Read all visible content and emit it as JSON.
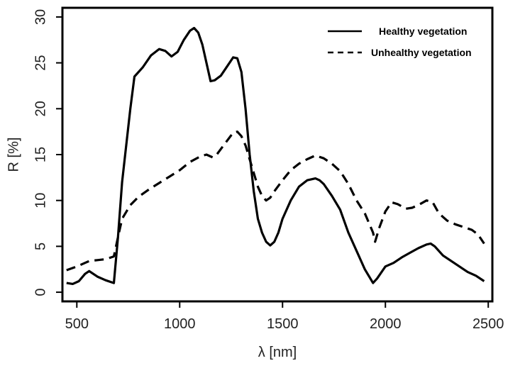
{
  "chart_data": {
    "type": "line",
    "title": "",
    "xlabel": "λ [nm]",
    "ylabel": "R  [%]",
    "xlim": [
      430,
      2520
    ],
    "ylim": [
      -1,
      31
    ],
    "xticks": [
      500,
      1000,
      1500,
      2000,
      2500
    ],
    "yticks": [
      0,
      5,
      10,
      15,
      20,
      25,
      30
    ],
    "grid": false,
    "legend_position": "top-right",
    "series": [
      {
        "name": "Healthy vegetation",
        "style": "solid",
        "color": "#000000",
        "x": [
          450,
          480,
          510,
          540,
          560,
          600,
          640,
          680,
          700,
          720,
          760,
          780,
          820,
          860,
          900,
          930,
          960,
          990,
          1020,
          1050,
          1070,
          1090,
          1110,
          1130,
          1150,
          1170,
          1200,
          1230,
          1260,
          1280,
          1300,
          1320,
          1340,
          1360,
          1380,
          1400,
          1420,
          1440,
          1460,
          1480,
          1500,
          1540,
          1580,
          1620,
          1660,
          1680,
          1700,
          1740,
          1780,
          1820,
          1860,
          1900,
          1940,
          1960,
          2000,
          2040,
          2080,
          2120,
          2160,
          2200,
          2220,
          2240,
          2280,
          2320,
          2360,
          2400,
          2440,
          2480
        ],
        "y": [
          1.0,
          0.9,
          1.2,
          2.0,
          2.3,
          1.7,
          1.3,
          1.0,
          6.0,
          12.0,
          20.0,
          23.5,
          24.5,
          25.8,
          26.5,
          26.3,
          25.7,
          26.2,
          27.5,
          28.5,
          28.8,
          28.3,
          27.0,
          25.0,
          23.0,
          23.1,
          23.6,
          24.6,
          25.6,
          25.5,
          24.0,
          20.0,
          15.0,
          11.0,
          8.0,
          6.5,
          5.5,
          5.1,
          5.5,
          6.5,
          8.0,
          10.0,
          11.5,
          12.2,
          12.4,
          12.2,
          11.8,
          10.5,
          9.0,
          6.5,
          4.5,
          2.5,
          1.0,
          1.5,
          2.8,
          3.2,
          3.8,
          4.3,
          4.8,
          5.2,
          5.3,
          5.0,
          4.0,
          3.4,
          2.8,
          2.2,
          1.8,
          1.2
        ]
      },
      {
        "name": "Unhealthy vegetation",
        "style": "dashed",
        "color": "#000000",
        "x": [
          450,
          500,
          540,
          560,
          600,
          640,
          680,
          700,
          720,
          760,
          800,
          850,
          900,
          950,
          1000,
          1050,
          1100,
          1130,
          1160,
          1180,
          1200,
          1230,
          1260,
          1280,
          1300,
          1320,
          1340,
          1360,
          1380,
          1400,
          1420,
          1440,
          1460,
          1500,
          1540,
          1580,
          1620,
          1660,
          1700,
          1740,
          1780,
          1820,
          1860,
          1900,
          1940,
          1950,
          1970,
          2000,
          2030,
          2060,
          2100,
          2130,
          2160,
          2200,
          2230,
          2260,
          2300,
          2340,
          2380,
          2420,
          2450,
          2480
        ],
        "y": [
          2.4,
          2.8,
          3.2,
          3.4,
          3.5,
          3.6,
          3.9,
          6.0,
          8.0,
          9.5,
          10.4,
          11.2,
          11.9,
          12.6,
          13.3,
          14.2,
          14.8,
          15.0,
          14.7,
          15.0,
          15.6,
          16.5,
          17.4,
          17.5,
          17.0,
          16.0,
          14.5,
          13.0,
          11.5,
          10.5,
          10.0,
          10.3,
          11.0,
          12.2,
          13.3,
          14.0,
          14.5,
          14.9,
          14.6,
          14.0,
          13.2,
          11.8,
          10.0,
          8.6,
          6.5,
          5.5,
          7.0,
          8.8,
          9.8,
          9.6,
          9.1,
          9.2,
          9.5,
          10.0,
          9.8,
          8.6,
          7.8,
          7.4,
          7.1,
          6.8,
          6.3,
          5.3
        ]
      }
    ]
  }
}
